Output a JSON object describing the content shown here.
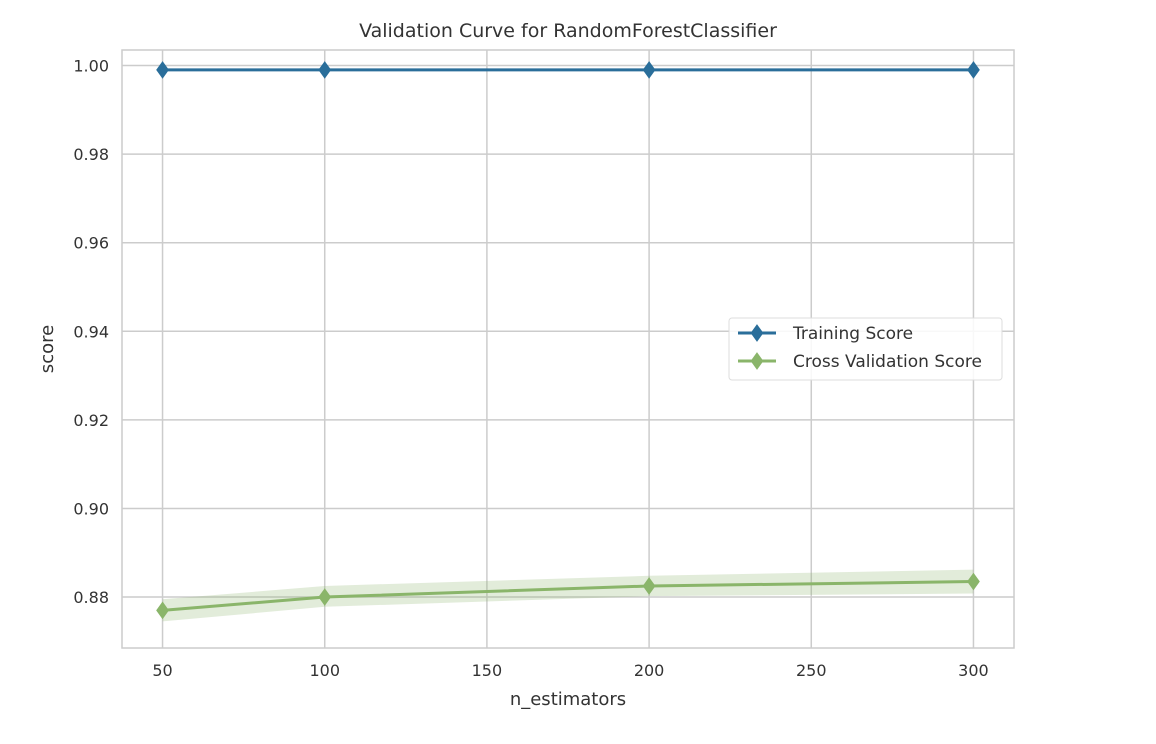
{
  "chart_data": {
    "type": "line",
    "title": "Validation Curve for RandomForestClassifier",
    "xlabel": "n_estimators",
    "ylabel": "score",
    "xlim": [
      37.5,
      312.5
    ],
    "ylim": [
      0.8685,
      1.0035
    ],
    "xticks": [
      50,
      100,
      150,
      200,
      250,
      300
    ],
    "yticks": [
      0.88,
      0.9,
      0.92,
      0.94,
      0.96,
      0.98,
      1.0
    ],
    "ytick_labels": [
      "0.88",
      "0.90",
      "0.92",
      "0.94",
      "0.96",
      "0.98",
      "1.00"
    ],
    "grid": true,
    "legend_position": "center-right",
    "series": [
      {
        "name": "Training Score",
        "color": "#2a6e9a",
        "marker": "diamond",
        "x": [
          50,
          100,
          200,
          300
        ],
        "y": [
          0.999,
          0.999,
          0.999,
          0.999
        ],
        "band_low": [
          0.999,
          0.999,
          0.999,
          0.999
        ],
        "band_high": [
          0.999,
          0.999,
          0.999,
          0.999
        ]
      },
      {
        "name": "Cross Validation Score",
        "color": "#8ab56a",
        "marker": "diamond",
        "x": [
          50,
          100,
          200,
          300
        ],
        "y": [
          0.877,
          0.88,
          0.8825,
          0.8835
        ],
        "band_low": [
          0.8745,
          0.8778,
          0.8802,
          0.8808
        ],
        "band_high": [
          0.8795,
          0.8825,
          0.8848,
          0.8862
        ]
      }
    ]
  }
}
